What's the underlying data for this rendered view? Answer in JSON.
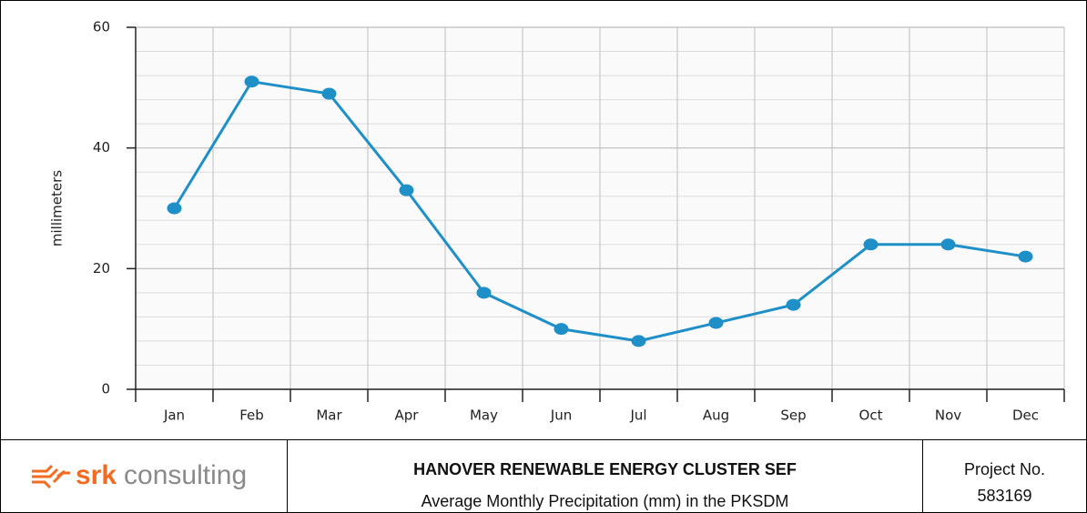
{
  "chart_data": {
    "type": "line",
    "ylabel": "millimeters",
    "categories": [
      "Jan",
      "Feb",
      "Mar",
      "Apr",
      "May",
      "Jun",
      "Jul",
      "Aug",
      "Sep",
      "Oct",
      "Nov",
      "Dec"
    ],
    "series": [
      {
        "color": "#1f8fc7",
        "values": [
          30,
          51,
          49,
          33,
          16,
          10,
          8,
          11,
          14,
          24,
          24,
          22
        ]
      }
    ],
    "ylim": [
      0,
      60
    ],
    "yticks": [
      0,
      20,
      40,
      60
    ],
    "minor_yticks": [
      4,
      8,
      12,
      16,
      24,
      28,
      32,
      36,
      44,
      48,
      52,
      56
    ],
    "grid": true
  },
  "footer": {
    "logo_brand": "srk",
    "logo_word": "consulting",
    "title": "HANOVER RENEWABLE ENERGY CLUSTER SEF",
    "subtitle": "Average Monthly Precipitation (mm) in the PKSDM",
    "project_label": "Project No.",
    "project_number": "583169"
  }
}
